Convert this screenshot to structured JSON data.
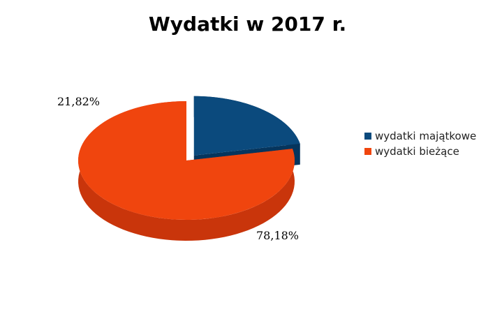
{
  "chart_data": {
    "type": "pie",
    "title": "Wydatki w 2017 r.",
    "slices": [
      {
        "label": "wydatki majątkowe",
        "value": 21.82,
        "display": "21,82%",
        "color": "#0b4a7d",
        "side_color": "#06355d",
        "exploded": true
      },
      {
        "label": "wydatki bieżące",
        "value": 78.18,
        "display": "78,18%",
        "color": "#f0450e",
        "side_color": "#c9350b",
        "exploded": false
      }
    ],
    "legend_position": "right",
    "style": "3d"
  }
}
